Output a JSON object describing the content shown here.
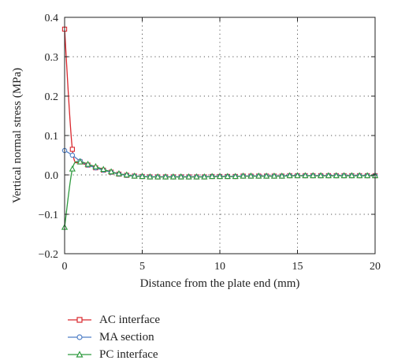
{
  "chart_data": {
    "type": "line",
    "xlabel": "Distance from the plate end (mm)",
    "ylabel": "Vertical normal stress (MPa)",
    "xlim": [
      0,
      20
    ],
    "ylim": [
      -0.2,
      0.4
    ],
    "xticks": [
      0,
      5,
      10,
      15,
      20
    ],
    "xtick_labels": [
      "0",
      "5",
      "10",
      "15",
      "20"
    ],
    "yticks": [
      -0.2,
      -0.1,
      0.0,
      0.1,
      0.2,
      0.3,
      0.4
    ],
    "ytick_labels": [
      "−0.2",
      "−0.1",
      "0.0",
      "0.1",
      "0.2",
      "0.3",
      "0.4"
    ],
    "grid": "dotted",
    "legend_position": "below",
    "series": [
      {
        "name": "AC interface",
        "color": "#d9272d",
        "marker": "square",
        "x": [
          0,
          0.5,
          1,
          1.5,
          2,
          2.5,
          3,
          3.5,
          4,
          4.5,
          5,
          5.5,
          6,
          6.5,
          7,
          7.5,
          8,
          8.5,
          9,
          9.5,
          10,
          10.5,
          11,
          11.5,
          12,
          12.5,
          13,
          13.5,
          14,
          14.5,
          15,
          15.5,
          16,
          16.5,
          17,
          17.5,
          18,
          18.5,
          19,
          19.5,
          20
        ],
        "y": [
          0.37,
          0.065,
          0.033,
          0.025,
          0.018,
          0.012,
          0.007,
          0.002,
          -0.001,
          -0.003,
          -0.004,
          -0.005,
          -0.005,
          -0.005,
          -0.005,
          -0.005,
          -0.005,
          -0.005,
          -0.005,
          -0.004,
          -0.004,
          -0.004,
          -0.004,
          -0.003,
          -0.003,
          -0.003,
          -0.003,
          -0.003,
          -0.003,
          -0.002,
          -0.002,
          -0.002,
          -0.002,
          -0.002,
          -0.002,
          -0.002,
          -0.002,
          -0.002,
          -0.002,
          -0.002,
          -0.002
        ]
      },
      {
        "name": "MA section",
        "color": "#4f7fc6",
        "marker": "circle",
        "x": [
          0,
          0.5,
          1,
          1.5,
          2,
          2.5,
          3,
          3.5,
          4,
          4.5,
          5,
          5.5,
          6,
          6.5,
          7,
          7.5,
          8,
          8.5,
          9,
          9.5,
          10,
          10.5,
          11,
          11.5,
          12,
          12.5,
          13,
          13.5,
          14,
          14.5,
          15,
          15.5,
          16,
          16.5,
          17,
          17.5,
          18,
          18.5,
          19,
          19.5,
          20
        ],
        "y": [
          0.062,
          0.05,
          0.035,
          0.025,
          0.018,
          0.012,
          0.007,
          0.002,
          -0.001,
          -0.003,
          -0.004,
          -0.005,
          -0.005,
          -0.005,
          -0.005,
          -0.005,
          -0.005,
          -0.005,
          -0.005,
          -0.004,
          -0.004,
          -0.004,
          -0.004,
          -0.003,
          -0.003,
          -0.003,
          -0.003,
          -0.003,
          -0.003,
          -0.002,
          -0.002,
          -0.002,
          -0.002,
          -0.002,
          -0.002,
          -0.002,
          -0.002,
          -0.002,
          -0.002,
          -0.002,
          -0.002
        ]
      },
      {
        "name": "PC interface",
        "color": "#2e9a3e",
        "marker": "triangle",
        "x": [
          0,
          0.5,
          1,
          1.5,
          2,
          2.5,
          3,
          3.5,
          4,
          4.5,
          5,
          5.5,
          6,
          6.5,
          7,
          7.5,
          8,
          8.5,
          9,
          9.5,
          10,
          10.5,
          11,
          11.5,
          12,
          12.5,
          13,
          13.5,
          14,
          14.5,
          15,
          15.5,
          16,
          16.5,
          17,
          17.5,
          18,
          18.5,
          19,
          19.5,
          20
        ],
        "y": [
          -0.133,
          0.015,
          0.033,
          0.027,
          0.021,
          0.014,
          0.008,
          0.003,
          0.0,
          -0.003,
          -0.004,
          -0.005,
          -0.005,
          -0.005,
          -0.005,
          -0.005,
          -0.005,
          -0.005,
          -0.005,
          -0.004,
          -0.004,
          -0.004,
          -0.004,
          -0.003,
          -0.003,
          -0.003,
          -0.003,
          -0.003,
          -0.003,
          -0.002,
          -0.002,
          -0.002,
          -0.002,
          -0.002,
          -0.002,
          -0.002,
          -0.002,
          -0.002,
          -0.002,
          -0.002,
          -0.002
        ]
      }
    ]
  }
}
